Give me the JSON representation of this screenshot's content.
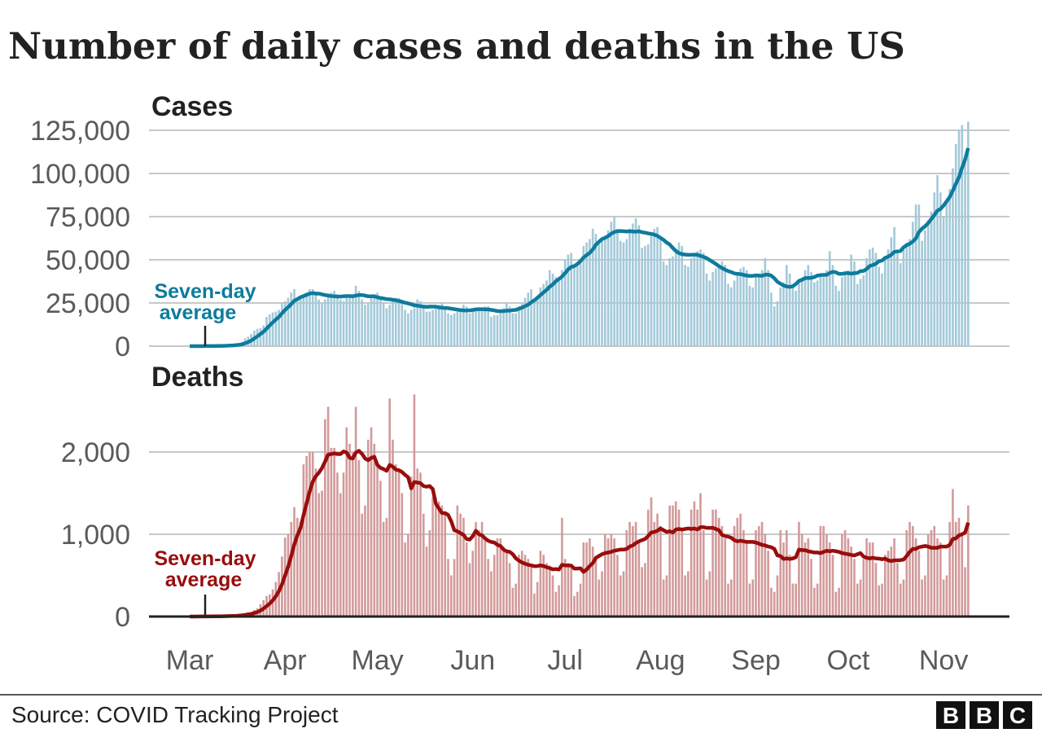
{
  "title": "Number of daily cases and deaths in the US",
  "source": "Source: COVID Tracking Project",
  "logo": "BBC",
  "colors": {
    "cases_bar": "#a3c9d9",
    "cases_line": "#0e7b9c",
    "deaths_bar": "#d39a9a",
    "deaths_line": "#990d0d",
    "grid": "#b5b5b5",
    "text": "#222222",
    "tick": "#5a5a5a"
  },
  "chart_data": [
    {
      "type": "bar",
      "title": "Cases",
      "start_date": "2020-03-01",
      "x_tick_labels": [
        "Mar",
        "Apr",
        "May",
        "Jun",
        "Jul",
        "Aug",
        "Sep",
        "Oct",
        "Nov"
      ],
      "x_tick_dates": [
        "2020-03-01",
        "2020-04-01",
        "2020-05-01",
        "2020-06-01",
        "2020-07-01",
        "2020-08-01",
        "2020-09-01",
        "2020-10-01",
        "2020-11-01"
      ],
      "ylim": [
        0,
        125000
      ],
      "y_ticks": [
        0,
        25000,
        50000,
        75000,
        100000,
        125000
      ],
      "y_tick_labels": [
        "0",
        "25,000",
        "50,000",
        "75,000",
        "100,000",
        "125,000"
      ],
      "grid": true,
      "annotation": [
        "Seven-day",
        "average"
      ],
      "overlay": "seven-day average line",
      "daily": [
        3,
        5,
        20,
        30,
        40,
        60,
        80,
        100,
        120,
        200,
        300,
        400,
        500,
        600,
        800,
        1100,
        1500,
        2500,
        4500,
        5500,
        7000,
        9000,
        10000,
        10500,
        12000,
        17000,
        18500,
        19500,
        20000,
        21000,
        25000,
        26000,
        28000,
        31000,
        33000,
        27000,
        28000,
        30000,
        31000,
        33000,
        33000,
        31000,
        27000,
        25000,
        27000,
        29000,
        31000,
        32000,
        30000,
        27000,
        26000,
        28000,
        29000,
        30000,
        35000,
        32000,
        27000,
        24000,
        25000,
        29000,
        30000,
        31000,
        29000,
        25000,
        22000,
        24000,
        27000,
        28000,
        28000,
        26000,
        21000,
        19000,
        21000,
        22000,
        27000,
        26000,
        24000,
        20000,
        20000,
        21000,
        22000,
        24000,
        25000,
        23000,
        19000,
        18000,
        19000,
        20000,
        22000,
        24000,
        23000,
        19000,
        20000,
        21000,
        21000,
        22000,
        23000,
        23000,
        17000,
        18000,
        18000,
        21000,
        22000,
        25000,
        23000,
        19000,
        19000,
        23000,
        25000,
        28000,
        31000,
        33000,
        27000,
        29000,
        34000,
        36000,
        38000,
        44000,
        42000,
        40000,
        38000,
        44000,
        50000,
        53000,
        54000,
        46000,
        48000,
        50000,
        58000,
        60000,
        62000,
        68000,
        65000,
        60000,
        61000,
        63000,
        67000,
        72000,
        75000,
        68000,
        61000,
        60000,
        62000,
        68000,
        71000,
        74000,
        70000,
        57000,
        58000,
        59000,
        66000,
        68000,
        69000,
        62000,
        49000,
        47000,
        51000,
        52000,
        56000,
        60000,
        58000,
        47000,
        46000,
        51000,
        53000,
        55000,
        56000,
        54000,
        42000,
        38000,
        43000,
        45000,
        46000,
        49000,
        47000,
        36000,
        34000,
        38000,
        43000,
        45000,
        46000,
        44000,
        35000,
        34000,
        40000,
        42000,
        44000,
        51000,
        44000,
        31000,
        23000,
        26000,
        34000,
        37000,
        47000,
        42000,
        34000,
        32000,
        38000,
        39000,
        44000,
        47000,
        43000,
        37000,
        38000,
        40000,
        40000,
        44000,
        55000,
        47000,
        35000,
        32000,
        40000,
        43000,
        44000,
        53000,
        49000,
        36000,
        39000,
        41000,
        51000,
        56000,
        57000,
        54000,
        46000,
        42000,
        52000,
        56000,
        63000,
        69000,
        56000,
        48000,
        57000,
        60000,
        62000,
        72000,
        82000,
        82000,
        61000,
        67000,
        73000,
        78000,
        89000,
        99000,
        89000,
        75000,
        84000,
        91000,
        103000,
        117000,
        125000,
        128000,
        109000,
        130000
      ]
    },
    {
      "type": "bar",
      "title": "Deaths",
      "start_date": "2020-03-01",
      "x_tick_labels": [
        "Mar",
        "Apr",
        "May",
        "Jun",
        "Jul",
        "Aug",
        "Sep",
        "Oct",
        "Nov"
      ],
      "ylim": [
        0,
        2700
      ],
      "y_ticks": [
        0,
        1000,
        2000
      ],
      "y_tick_labels": [
        "0",
        "1,000",
        "2,000"
      ],
      "grid": true,
      "annotation": [
        "Seven-day",
        "average"
      ],
      "overlay": "seven-day average line",
      "daily": [
        0,
        0,
        1,
        2,
        3,
        1,
        2,
        3,
        4,
        5,
        4,
        7,
        8,
        10,
        8,
        16,
        25,
        30,
        40,
        50,
        55,
        80,
        100,
        150,
        200,
        250,
        270,
        330,
        420,
        540,
        730,
        960,
        1000,
        1150,
        1330,
        1200,
        1150,
        1850,
        1950,
        2000,
        2000,
        1800,
        1500,
        1530,
        2400,
        2550,
        2050,
        2050,
        1750,
        1500,
        1750,
        2300,
        2100,
        2000,
        2550,
        1900,
        1250,
        1350,
        2150,
        2300,
        2100,
        1850,
        1650,
        1150,
        1200,
        2650,
        2150,
        1850,
        1800,
        1500,
        900,
        1000,
        1700,
        2700,
        1800,
        1750,
        1250,
        850,
        1050,
        1450,
        1450,
        1400,
        1350,
        1250,
        700,
        500,
        700,
        1350,
        1250,
        1200,
        900,
        650,
        800,
        1150,
        1050,
        1150,
        950,
        700,
        550,
        750,
        950,
        950,
        850,
        800,
        650,
        350,
        400,
        750,
        800,
        750,
        700,
        600,
        280,
        420,
        800,
        750,
        650,
        620,
        500,
        300,
        380,
        1200,
        700,
        650,
        600,
        250,
        300,
        400,
        900,
        900,
        950,
        850,
        700,
        450,
        550,
        1000,
        950,
        1000,
        950,
        750,
        500,
        550,
        1050,
        1150,
        1100,
        1150,
        900,
        600,
        650,
        1300,
        1450,
        1150,
        1250,
        1100,
        450,
        500,
        1350,
        1350,
        1400,
        1300,
        1050,
        500,
        550,
        1300,
        1400,
        1300,
        1500,
        1050,
        450,
        550,
        1300,
        1300,
        1200,
        1100,
        950,
        400,
        450,
        1100,
        1200,
        1250,
        1050,
        900,
        400,
        450,
        1050,
        1100,
        1150,
        1000,
        800,
        350,
        300,
        500,
        1050,
        900,
        1050,
        750,
        400,
        400,
        1150,
        1000,
        900,
        950,
        700,
        350,
        400,
        1100,
        1100,
        1000,
        900,
        750,
        300,
        350,
        1000,
        1050,
        950,
        850,
        700,
        400,
        450,
        700,
        950,
        900,
        900,
        650,
        380,
        400,
        750,
        800,
        850,
        950,
        650,
        400,
        450,
        1050,
        1150,
        1100,
        950,
        800,
        450,
        500,
        1000,
        1050,
        1100,
        950,
        900,
        450,
        500,
        1150,
        1550,
        1150,
        1200,
        1000,
        600,
        1350
      ]
    }
  ]
}
